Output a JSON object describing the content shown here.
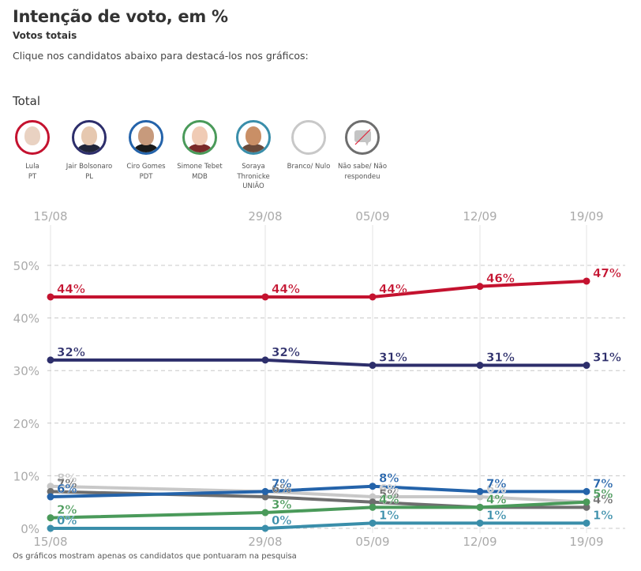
{
  "header": {
    "title": "Intenção de voto, em %",
    "subtitle": "Votos totais",
    "instruction": "Clique nos candidatos abaixo para destacá-los nos gráficos:",
    "section": "Total"
  },
  "candidates": [
    {
      "name": "Lula",
      "party": "PT",
      "color": "#c4122f",
      "icon": "lula-photo"
    },
    {
      "name": "Jair Bolsonaro",
      "party": "PL",
      "color": "#2d2e6b",
      "icon": "bolsonaro-photo"
    },
    {
      "name": "Ciro Gomes",
      "party": "PDT",
      "color": "#2463aa",
      "icon": "ciro-photo"
    },
    {
      "name": "Simone Tebet",
      "party": "MDB",
      "color": "#4a9a5a",
      "icon": "simone-photo"
    },
    {
      "name": "Soraya Thronicke",
      "party": "UNIÃO",
      "color": "#3a8eaa",
      "icon": "soraya-photo"
    },
    {
      "name": "Branco/ Nulo",
      "party": "",
      "color": "#c8c8c8",
      "icon": "blank-circle-icon"
    },
    {
      "name": "Não sabe/ Não respondeu",
      "party": "",
      "color": "#6e6e6e",
      "icon": "no-speech-bubble-icon"
    }
  ],
  "chart_data": {
    "type": "line",
    "title": "Intenção de voto, em %",
    "subtitle": "Votos totais",
    "x": [
      "15/08",
      "29/08",
      "05/09",
      "12/09",
      "19/09"
    ],
    "ylim": [
      0,
      50
    ],
    "yticks": [
      "0%",
      "10%",
      "20%",
      "30%",
      "40%",
      "50%"
    ],
    "grid": true,
    "series": [
      {
        "name": "Lula",
        "color": "#c4122f",
        "values": [
          44,
          44,
          44,
          46,
          47
        ]
      },
      {
        "name": "Jair Bolsonaro",
        "color": "#2d2e6b",
        "values": [
          32,
          32,
          31,
          31,
          31
        ]
      },
      {
        "name": "Ciro Gomes",
        "color": "#2463aa",
        "values": [
          6,
          7,
          8,
          7,
          7
        ]
      },
      {
        "name": "Simone Tebet",
        "color": "#4a9a5a",
        "values": [
          2,
          3,
          4,
          4,
          5
        ]
      },
      {
        "name": "Soraya Thronicke",
        "color": "#3a8eaa",
        "values": [
          0,
          0,
          1,
          1,
          1
        ]
      },
      {
        "name": "Branco/ Nulo",
        "color": "#c8c8c8",
        "values": [
          8,
          7,
          6,
          6,
          5
        ]
      },
      {
        "name": "Não sabe/ Não respondeu",
        "color": "#6e6e6e",
        "values": [
          7,
          6,
          5,
          4,
          4
        ]
      }
    ]
  },
  "footnote": "Os gráficos mostram apenas os candidatos que pontuaram na pesquisa"
}
